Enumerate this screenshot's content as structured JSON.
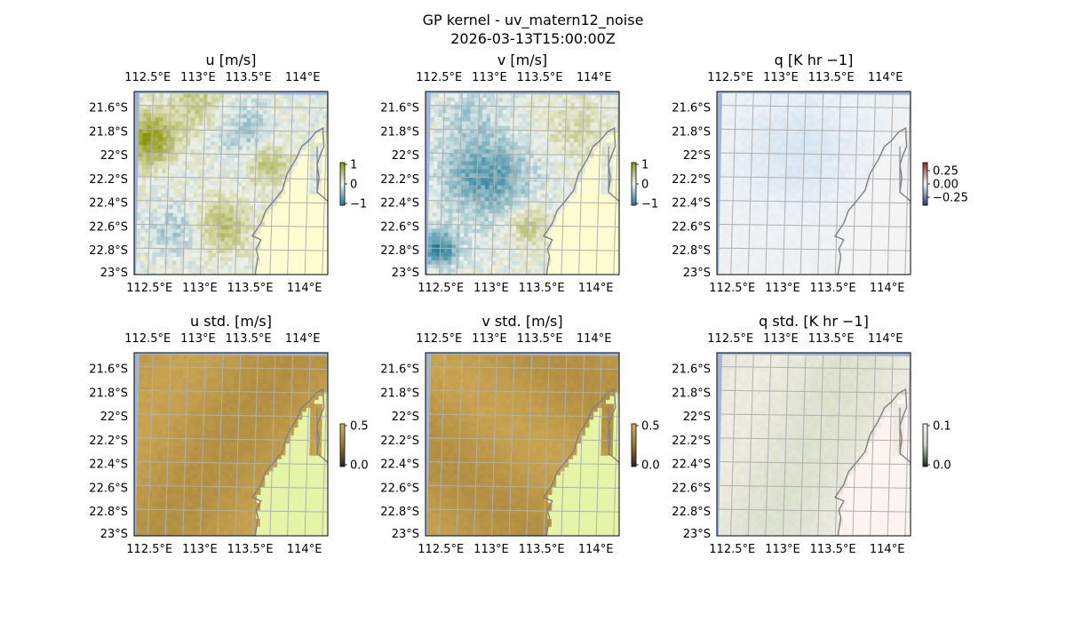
{
  "figure": {
    "title_line1": "GP kernel - uv_matern12_noise",
    "title_line2": "2026-03-13T15:00:00Z"
  },
  "chart_data": [
    {
      "type": "heatmap",
      "title": "u [m/s]",
      "x_ticks": [
        "112.5°E",
        "113°E",
        "113.5°E",
        "114°E"
      ],
      "y_ticks": [
        "21.6°S",
        "21.8°S",
        "22°S",
        "22.2°S",
        "22.4°S",
        "22.6°S",
        "22.8°S",
        "23°S"
      ],
      "colorbar": {
        "ticks": [
          "1",
          "0",
          "−1"
        ],
        "range": [
          -1,
          1
        ],
        "colormap": "teal-white-olive diverging"
      },
      "coastline": true,
      "grid": true
    },
    {
      "type": "heatmap",
      "title": "v [m/s]",
      "x_ticks": [
        "112.5°E",
        "113°E",
        "113.5°E",
        "114°E"
      ],
      "y_ticks": [
        "21.6°S",
        "21.8°S",
        "22°S",
        "22.2°S",
        "22.4°S",
        "22.6°S",
        "22.8°S",
        "23°S"
      ],
      "colorbar": {
        "ticks": [
          "1",
          "0",
          "−1"
        ],
        "range": [
          -1,
          1
        ],
        "colormap": "teal-white-olive diverging"
      },
      "coastline": true,
      "grid": true
    },
    {
      "type": "heatmap",
      "title": "q [K hr −1]",
      "x_ticks": [
        "112.5°E",
        "113°E",
        "113.5°E",
        "114°E"
      ],
      "y_ticks": [
        "21.6°S",
        "21.8°S",
        "22°S",
        "22.2°S",
        "22.4°S",
        "22.6°S",
        "22.8°S",
        "23°S"
      ],
      "colorbar": {
        "ticks": [
          "0.25",
          "0.00",
          "−0.25"
        ],
        "range": [
          -0.25,
          0.25
        ],
        "colormap": "blue-white-red diverging"
      },
      "coastline": true,
      "grid": true
    },
    {
      "type": "heatmap",
      "title": "u std. [m/s]",
      "x_ticks": [
        "112.5°E",
        "113°E",
        "113.5°E",
        "114°E"
      ],
      "y_ticks": [
        "21.6°S",
        "21.8°S",
        "22°S",
        "22.2°S",
        "22.4°S",
        "22.6°S",
        "22.8°S",
        "23°S"
      ],
      "colorbar": {
        "ticks": [
          "0.5",
          "0.0"
        ],
        "range": [
          0,
          0.5
        ],
        "colormap": "dark-to-olive sequential"
      },
      "coastline": true,
      "grid": true
    },
    {
      "type": "heatmap",
      "title": "v std. [m/s]",
      "x_ticks": [
        "112.5°E",
        "113°E",
        "113.5°E",
        "114°E"
      ],
      "y_ticks": [
        "21.6°S",
        "21.8°S",
        "22°S",
        "22.2°S",
        "22.4°S",
        "22.6°S",
        "22.8°S",
        "23°S"
      ],
      "colorbar": {
        "ticks": [
          "0.5",
          "0.0"
        ],
        "range": [
          0,
          0.5
        ],
        "colormap": "dark-to-olive sequential"
      },
      "coastline": true,
      "grid": true
    },
    {
      "type": "heatmap",
      "title": "q std. [K hr −1]",
      "x_ticks": [
        "112.5°E",
        "113°E",
        "113.5°E",
        "114°E"
      ],
      "y_ticks": [
        "21.6°S",
        "21.8°S",
        "22°S",
        "22.2°S",
        "22.4°S",
        "22.6°S",
        "22.8°S",
        "23°S"
      ],
      "colorbar": {
        "ticks": [
          "0.1",
          "0.0"
        ],
        "range": [
          0,
          0.1
        ],
        "colormap": "dark-to-pale sequential"
      },
      "coastline": true,
      "grid": true
    }
  ],
  "colors": {
    "ocean_edge": "#9db4de",
    "grid": "#b0b0b0",
    "coastline": "#808080",
    "u_land": "#fefdd2",
    "std_land": "#e6f4a8",
    "q_land": "#f4f4f4",
    "qstd_land": "#fdf3f1"
  }
}
